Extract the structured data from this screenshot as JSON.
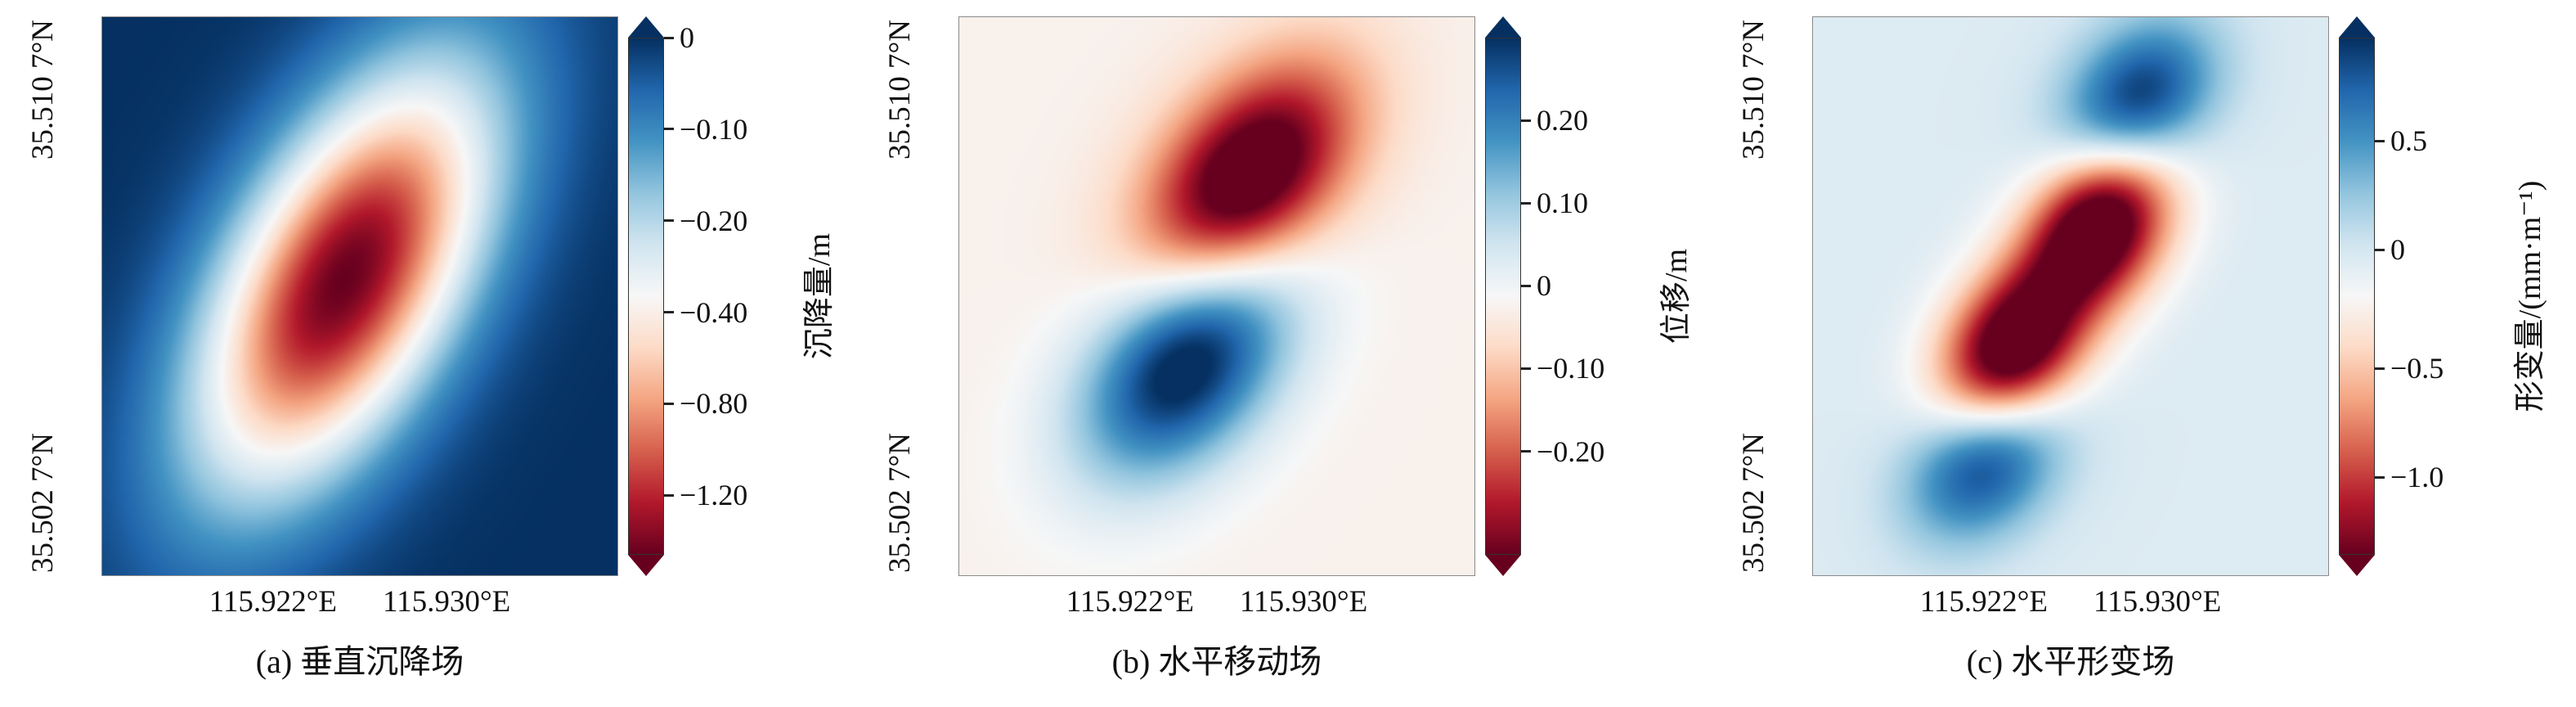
{
  "figure": {
    "panels": [
      {
        "id": "a",
        "caption": "(a) 垂直沉降场",
        "x_ticks": [
          "115.922°E",
          "115.930°E"
        ],
        "y_ticks": [
          "35.502 7°N",
          "35.510 7°N"
        ],
        "colorbar": {
          "label": "沉降量/m",
          "ticks": [
            {
              "label": "0",
              "pos": 0.0
            },
            {
              "label": "−0.10",
              "pos": 0.177
            },
            {
              "label": "−0.20",
              "pos": 0.354
            },
            {
              "label": "−0.40",
              "pos": 0.531
            },
            {
              "label": "−0.80",
              "pos": 0.708
            },
            {
              "label": "−1.20",
              "pos": 0.885
            }
          ]
        }
      },
      {
        "id": "b",
        "caption": "(b) 水平移动场",
        "x_ticks": [
          "115.922°E",
          "115.930°E"
        ],
        "y_ticks": [
          "35.502 7°N",
          "35.510 7°N"
        ],
        "colorbar": {
          "label": "位移/m",
          "ticks": [
            {
              "label": "0.20",
              "pos": 0.16
            },
            {
              "label": "0.10",
              "pos": 0.32
            },
            {
              "label": "0",
              "pos": 0.48
            },
            {
              "label": "−0.10",
              "pos": 0.64
            },
            {
              "label": "−0.20",
              "pos": 0.8
            }
          ]
        }
      },
      {
        "id": "c",
        "caption": "(c) 水平形变场",
        "x_ticks": [
          "115.922°E",
          "115.930°E"
        ],
        "y_ticks": [
          "35.502 7°N",
          "35.510 7°N"
        ],
        "colorbar": {
          "label": "形变量/(mm·m⁻¹)",
          "ticks": [
            {
              "label": "0.5",
              "pos": 0.2
            },
            {
              "label": "0",
              "pos": 0.41
            },
            {
              "label": "−0.5",
              "pos": 0.64
            },
            {
              "label": "−1.0",
              "pos": 0.85
            }
          ]
        }
      }
    ]
  },
  "chart_data": [
    {
      "type": "heatmap",
      "panel": "a",
      "title": "(a) 垂直沉降场",
      "x_axis_ticks": [
        "115.922°E",
        "115.930°E"
      ],
      "y_axis_ticks": [
        "35.502 7°N",
        "35.510 7°N"
      ],
      "colorbar_label": "沉降量/m",
      "colorbar_ticks": [
        0,
        -0.1,
        -0.2,
        -0.4,
        -0.8,
        -1.2
      ],
      "colormap": "RdBu",
      "value_range": [
        -1.45,
        0
      ],
      "norm": {
        "type": "sqrt_negative",
        "vmax": 1.45
      },
      "bias": 0,
      "field_gaussians": [
        {
          "cx": 0.47,
          "cy": 0.47,
          "amp": -1.45,
          "sigma_major": 0.21,
          "sigma_minor": 0.105,
          "rot_deg": -58
        }
      ],
      "description": "Vertical subsidence field: single elliptical subsidence bowl tilted NE-SW, peak subsidence about -1.3 m (dark red core) on a zero-subsidence dark blue background"
    },
    {
      "type": "heatmap",
      "panel": "b",
      "title": "(b) 水平移动场",
      "x_axis_ticks": [
        "115.922°E",
        "115.930°E"
      ],
      "y_axis_ticks": [
        "35.502 7°N",
        "35.510 7°N"
      ],
      "colorbar_label": "位移/m",
      "colorbar_ticks": [
        0.2,
        0.1,
        0,
        -0.1,
        -0.2
      ],
      "colormap": "RdBu",
      "value_range": [
        -0.27,
        0.27
      ],
      "norm": {
        "type": "linear",
        "vmax": 0.27
      },
      "bias": -0.012,
      "field_gaussians": [
        {
          "cx": 0.56,
          "cy": 0.29,
          "amp": -0.34,
          "sigma_major": 0.17,
          "sigma_minor": 0.105,
          "rot_deg": -45
        },
        {
          "cx": 0.44,
          "cy": 0.62,
          "amp": 0.32,
          "sigma_major": 0.17,
          "sigma_minor": 0.11,
          "rot_deg": -45
        }
      ],
      "description": "Horizontal movement field: negative (red) displacement lobe in upper NE area about -0.25 m, positive (blue) lobe in lower SW area about +0.25 m, near-zero pale background"
    },
    {
      "type": "heatmap",
      "panel": "c",
      "title": "(c) 水平形变场",
      "x_axis_ticks": [
        "115.922°E",
        "115.930°E"
      ],
      "y_axis_ticks": [
        "35.502 7°N",
        "35.510 7°N"
      ],
      "colorbar_label": "形变量/(mm·m⁻¹)",
      "colorbar_ticks": [
        0.5,
        0,
        -0.5,
        -1.0
      ],
      "colormap": "RdBu",
      "value_range": [
        -1.3,
        0.9
      ],
      "norm": {
        "type": "linear",
        "vmax": 1.3
      },
      "bias": 0.18,
      "field_gaussians": [
        {
          "cx": 0.63,
          "cy": 0.15,
          "amp": 1.15,
          "sigma_major": 0.115,
          "sigma_minor": 0.085,
          "rot_deg": -40
        },
        {
          "cx": 0.335,
          "cy": 0.79,
          "amp": 1.15,
          "sigma_major": 0.115,
          "sigma_minor": 0.085,
          "rot_deg": -40
        },
        {
          "cx": 0.555,
          "cy": 0.375,
          "amp": -1.9,
          "sigma_major": 0.115,
          "sigma_minor": 0.085,
          "rot_deg": -50
        },
        {
          "cx": 0.385,
          "cy": 0.6,
          "amp": -1.9,
          "sigma_major": 0.115,
          "sigma_minor": 0.085,
          "rot_deg": -50
        }
      ],
      "description": "Horizontal deformation field: two positive (blue) lobes at NE and SW ends (~+0.8) and a tilted dumbbell of negative (red) deformation through the centre (~-1.2) on a light-blue slightly positive background"
    }
  ]
}
